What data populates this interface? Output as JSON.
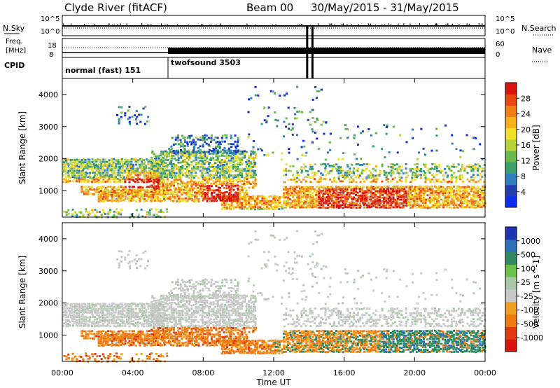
{
  "title": {
    "station": "Clyde River (fitACF)",
    "beam": "Beam 00",
    "dates": "30/May/2015 - 31/May/2015"
  },
  "header": {
    "nsky_label": "N.Sky",
    "nsearch_label": "N.Search",
    "freq_label": "Freq.",
    "freq_unit": "[MHz]",
    "nave_label": "Nave",
    "cpid_label": "CPID",
    "nsky_ticks": [
      "10^5",
      "10^0"
    ],
    "nsearch_ticks": [
      "10^5",
      "10^0"
    ],
    "freq_ticks": [
      "18",
      "8"
    ],
    "nave_ticks": [
      "60",
      "0"
    ],
    "cpid_modes": [
      {
        "label": "normal (fast) 151",
        "start_hour": 0,
        "end_hour": 6
      },
      {
        "label": "twofsound 3503",
        "start_hour": 6,
        "end_hour": 24
      }
    ],
    "gap_hours": [
      13.9,
      14.2
    ]
  },
  "chart_data": [
    {
      "type": "heatmap",
      "title": "",
      "xlabel": "Time UT",
      "ylabel": "Slant Range [km]",
      "x_ticks": [
        "00:00",
        "04:00",
        "08:00",
        "12:00",
        "16:00",
        "20:00",
        "00:00"
      ],
      "xlim_hours": [
        0,
        24
      ],
      "y_ticks": [
        1000,
        2000,
        3000,
        4000
      ],
      "ylim_km": [
        180,
        4500
      ],
      "colorbar": {
        "label": "Power [dB]",
        "ticks": [
          "4",
          "8",
          "12",
          "16",
          "20",
          "24",
          "28"
        ],
        "range": [
          0,
          30
        ],
        "colors": [
          "#0c2cf0",
          "#233fae",
          "#2f7fc0",
          "#3a9f6a",
          "#6bb84a",
          "#b8d23a",
          "#f2e02a",
          "#f6b11a",
          "#f07f14",
          "#e84810",
          "#d8140c"
        ]
      }
    },
    {
      "type": "heatmap",
      "title": "",
      "xlabel": "Time UT",
      "ylabel": "Slant Range [km]",
      "x_ticks": [
        "00:00",
        "04:00",
        "08:00",
        "12:00",
        "16:00",
        "20:00",
        "00:00"
      ],
      "xlim_hours": [
        0,
        24
      ],
      "y_ticks": [
        1000,
        2000,
        3000,
        4000
      ],
      "ylim_km": [
        180,
        4500
      ],
      "colorbar": {
        "label": "Velocity [m s^-1]",
        "ticks": [
          "1000",
          "500",
          "100",
          "25",
          "-25",
          "-100",
          "-500",
          "-1000"
        ],
        "colors": [
          "#1c33b4",
          "#2f6fb8",
          "#2e8a5e",
          "#6ac04a",
          "#a8c8a8",
          "#c8c8c8",
          "#f0a020",
          "#f07a10",
          "#e23a10",
          "#d8140c"
        ]
      }
    }
  ]
}
